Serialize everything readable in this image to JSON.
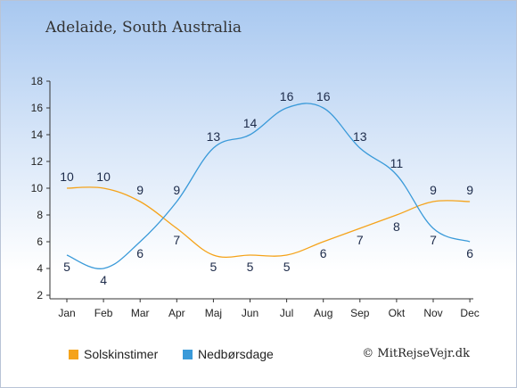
{
  "page": {
    "title": "Adelaide, South Australia",
    "credit": "© MitRejseVejr.dk"
  },
  "colors": {
    "sun": "#f5a31a",
    "rain": "#3a9ad9"
  },
  "chart_data": {
    "type": "line",
    "title": "Adelaide, South Australia",
    "categories": [
      "Jan",
      "Feb",
      "Mar",
      "Apr",
      "Maj",
      "Jun",
      "Jul",
      "Aug",
      "Sep",
      "Okt",
      "Nov",
      "Dec"
    ],
    "yticks": [
      2,
      4,
      6,
      8,
      10,
      12,
      14,
      16,
      18
    ],
    "ylim": [
      2,
      18
    ],
    "grid": false,
    "legend_position": "bottom-left",
    "series": [
      {
        "name": "Solskinstimer",
        "color": "#f5a31a",
        "values": [
          10,
          10,
          9,
          7,
          5,
          5,
          5,
          6,
          7,
          8,
          9,
          9
        ]
      },
      {
        "name": "Nedbørsdage",
        "color": "#3a9ad9",
        "values": [
          5,
          4,
          6,
          9,
          13,
          14,
          16,
          16,
          13,
          11,
          7,
          6
        ]
      }
    ]
  }
}
